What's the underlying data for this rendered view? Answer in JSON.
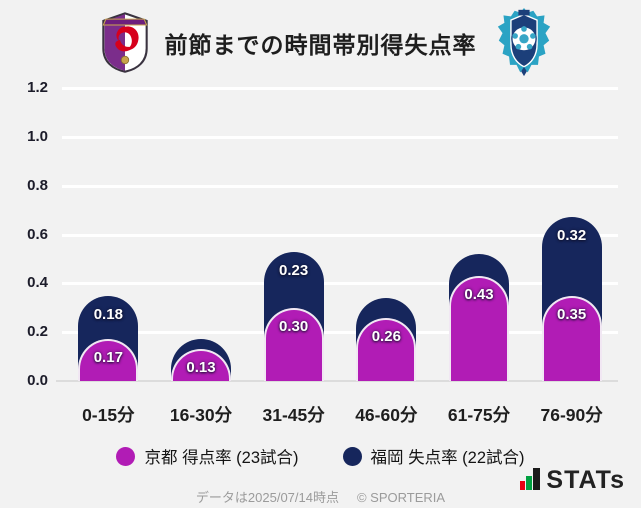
{
  "header": {
    "title": "前節までの時間帯別得失点率",
    "home_logo_icon": "kyoto-sanga-crest",
    "away_logo_icon": "avispa-fukuoka-crest"
  },
  "chart_data": {
    "type": "bar",
    "stacked": true,
    "title": "前節までの時間帯別得失点率",
    "categories": [
      "0-15分",
      "16-30分",
      "31-45分",
      "46-60分",
      "61-75分",
      "76-90分"
    ],
    "series": [
      {
        "name": "京都 得点率 (23試合)",
        "color": "#b11cb5",
        "values": [
          0.17,
          0.13,
          0.3,
          0.26,
          0.43,
          0.35
        ],
        "labels": [
          "0.17",
          "0.13",
          "0.30",
          "0.26",
          "0.43",
          "0.35"
        ]
      },
      {
        "name": "福岡 失点率 (22試合)",
        "color": "#16265c",
        "values": [
          0.18,
          0.04,
          0.23,
          0.08,
          0.09,
          0.32
        ],
        "labels": [
          "0.18",
          "",
          "0.23",
          "",
          "",
          "0.32"
        ]
      }
    ],
    "ylim": [
      0,
      1.2
    ],
    "yticks": [
      0,
      0.2,
      0.4,
      0.6,
      0.8,
      1.0,
      1.2
    ],
    "grid": true,
    "legend_position": "bottom"
  },
  "footer": {
    "source": "データは2025/07/14時点",
    "copyright": "© SPORTERIA",
    "stats_text": "STATs"
  }
}
